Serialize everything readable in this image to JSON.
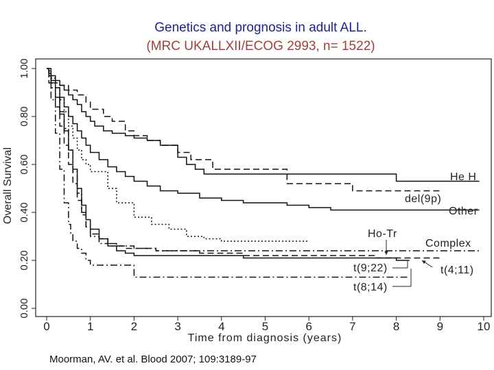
{
  "title": {
    "line1": "Genetics and prognosis in adult ALL.",
    "line2": "(MRC UKALLXII/ECOG 2993, n= 1522)"
  },
  "citation": "Moorman, AV. et al. Blood 2007; 109:3189-97",
  "chart_data": {
    "type": "line",
    "title": "Genetics and prognosis in adult ALL.",
    "subtitle": "(MRC UKALLXII/ECOG 2993, n= 1522)",
    "xlabel": "Time from diagnosis (years)",
    "ylabel": "Overall Survival",
    "xlim": [
      0,
      10
    ],
    "ylim": [
      0,
      1
    ],
    "xticks": [
      0,
      1,
      2,
      3,
      4,
      5,
      6,
      7,
      8,
      9,
      10
    ],
    "yticks": [
      "0.00",
      "0.20",
      "0.40",
      "0.60",
      "0.80",
      "1.00"
    ],
    "grid": false,
    "series": [
      {
        "name": "HeH",
        "style": "solid",
        "x": [
          0,
          0.05,
          0.1,
          0.2,
          0.3,
          0.4,
          0.5,
          0.6,
          0.7,
          0.8,
          0.9,
          1.0,
          1.1,
          1.3,
          1.5,
          1.8,
          2.0,
          2.3,
          2.6,
          3.0,
          3.2,
          3.4,
          3.6,
          4.0,
          4.5,
          5.0,
          5.5,
          6.0,
          6.5,
          7.0,
          7.5,
          8.0,
          8.5,
          9.0,
          9.5,
          9.9
        ],
        "y": [
          1.0,
          0.99,
          0.97,
          0.95,
          0.93,
          0.91,
          0.89,
          0.87,
          0.85,
          0.82,
          0.8,
          0.78,
          0.76,
          0.74,
          0.73,
          0.72,
          0.71,
          0.7,
          0.68,
          0.63,
          0.6,
          0.58,
          0.56,
          0.56,
          0.56,
          0.56,
          0.56,
          0.56,
          0.56,
          0.56,
          0.56,
          0.53,
          0.53,
          0.53,
          0.53,
          0.53
        ]
      },
      {
        "name": "del(9p)",
        "style": "dashed",
        "x": [
          0,
          0.05,
          0.1,
          0.2,
          0.3,
          0.5,
          0.7,
          0.9,
          1.0,
          1.3,
          1.5,
          1.8,
          2.0,
          2.3,
          2.6,
          3.0,
          3.3,
          3.6,
          3.8,
          4.0,
          4.3,
          4.5,
          4.8,
          5.0,
          5.5,
          5.8,
          6.0,
          6.5,
          7.0,
          7.5,
          8.0,
          8.5,
          9.0
        ],
        "y": [
          1.0,
          0.97,
          0.95,
          0.94,
          0.93,
          0.91,
          0.89,
          0.86,
          0.83,
          0.8,
          0.78,
          0.74,
          0.72,
          0.7,
          0.68,
          0.65,
          0.62,
          0.62,
          0.58,
          0.58,
          0.58,
          0.58,
          0.58,
          0.58,
          0.52,
          0.52,
          0.52,
          0.52,
          0.49,
          0.49,
          0.49,
          0.49,
          0.49
        ]
      },
      {
        "name": "Other",
        "style": "solid",
        "x": [
          0,
          0.05,
          0.1,
          0.2,
          0.3,
          0.4,
          0.5,
          0.6,
          0.7,
          0.8,
          0.9,
          1.0,
          1.2,
          1.4,
          1.6,
          1.8,
          2.0,
          2.3,
          2.6,
          3.0,
          3.5,
          4.0,
          4.5,
          5.0,
          5.5,
          6.0,
          6.5,
          7.0,
          7.5,
          8.0,
          8.5,
          9.0,
          9.5,
          9.9
        ],
        "y": [
          1.0,
          0.98,
          0.95,
          0.92,
          0.88,
          0.84,
          0.8,
          0.77,
          0.74,
          0.71,
          0.68,
          0.65,
          0.62,
          0.59,
          0.57,
          0.55,
          0.53,
          0.51,
          0.49,
          0.48,
          0.46,
          0.45,
          0.44,
          0.44,
          0.43,
          0.42,
          0.41,
          0.41,
          0.41,
          0.41,
          0.41,
          0.41,
          0.41,
          0.41
        ]
      },
      {
        "name": "Ho-Tr",
        "style": "dashdot",
        "x": [
          0,
          0.05,
          0.1,
          0.2,
          0.3,
          0.4,
          0.5,
          0.6,
          0.7,
          0.8,
          0.9,
          1.0,
          1.2,
          1.5,
          2.0,
          2.5,
          3.0,
          4.0,
          5.0,
          6.0,
          7.0,
          8.0,
          9.0,
          9.9
        ],
        "y": [
          1.0,
          0.97,
          0.94,
          0.88,
          0.82,
          0.75,
          0.66,
          0.57,
          0.48,
          0.4,
          0.34,
          0.3,
          0.27,
          0.26,
          0.25,
          0.24,
          0.24,
          0.24,
          0.24,
          0.24,
          0.24,
          0.24,
          0.24,
          0.24
        ]
      },
      {
        "name": "Complex",
        "style": "dotted",
        "x": [
          0,
          0.05,
          0.1,
          0.2,
          0.3,
          0.4,
          0.5,
          0.6,
          0.7,
          0.8,
          0.9,
          1.0,
          1.2,
          1.4,
          1.6,
          2.0,
          2.4,
          2.8,
          3.2,
          3.6,
          4.0,
          4.5,
          4.8,
          5.0,
          5.5,
          6.0
        ],
        "y": [
          1.0,
          0.98,
          0.96,
          0.92,
          0.87,
          0.82,
          0.76,
          0.71,
          0.66,
          0.62,
          0.6,
          0.57,
          0.57,
          0.5,
          0.44,
          0.38,
          0.35,
          0.33,
          0.3,
          0.29,
          0.28,
          0.28,
          0.28,
          0.28,
          0.28,
          0.28
        ]
      },
      {
        "name": "t(9;22)",
        "style": "solid",
        "x": [
          0,
          0.05,
          0.1,
          0.2,
          0.3,
          0.4,
          0.5,
          0.6,
          0.7,
          0.8,
          0.9,
          1.0,
          1.2,
          1.4,
          1.6,
          1.8,
          2.0,
          2.5,
          3.0,
          3.5,
          4.0,
          4.5,
          5.0,
          5.5,
          6.0,
          6.5,
          7.0,
          7.5,
          8.0,
          8.3
        ],
        "y": [
          1.0,
          0.97,
          0.94,
          0.88,
          0.81,
          0.74,
          0.66,
          0.58,
          0.5,
          0.43,
          0.37,
          0.33,
          0.29,
          0.26,
          0.24,
          0.23,
          0.22,
          0.22,
          0.22,
          0.22,
          0.22,
          0.21,
          0.21,
          0.21,
          0.21,
          0.21,
          0.21,
          0.21,
          0.2,
          0.2
        ]
      },
      {
        "name": "t(4;11)",
        "style": "dashed",
        "x": [
          0,
          0.1,
          0.2,
          0.3,
          0.4,
          0.5,
          0.6,
          0.7,
          0.8,
          0.9,
          1.0,
          1.2,
          1.4,
          1.6,
          1.8,
          2.0,
          2.5,
          3.0,
          3.5,
          4.0,
          4.5,
          5.0,
          5.5,
          6.0,
          6.5,
          7.0,
          7.5,
          8.0,
          8.5,
          9.0
        ],
        "y": [
          1.0,
          0.92,
          0.84,
          0.76,
          0.68,
          0.6,
          0.52,
          0.45,
          0.39,
          0.34,
          0.31,
          0.29,
          0.27,
          0.26,
          0.25,
          0.25,
          0.24,
          0.24,
          0.23,
          0.23,
          0.22,
          0.22,
          0.22,
          0.22,
          0.22,
          0.22,
          0.21,
          0.21,
          0.21,
          0.21
        ]
      },
      {
        "name": "t(8;14)",
        "style": "dashdot",
        "x": [
          0,
          0.05,
          0.1,
          0.2,
          0.3,
          0.4,
          0.5,
          0.55,
          0.6,
          0.7,
          0.8,
          0.9,
          1.0,
          1.5,
          1.9,
          2.0,
          2.5,
          3.0,
          4.0,
          5.0,
          6.0,
          7.0,
          7.5,
          8.0,
          8.3
        ],
        "y": [
          1.0,
          0.94,
          0.87,
          0.73,
          0.58,
          0.44,
          0.35,
          0.31,
          0.28,
          0.25,
          0.23,
          0.2,
          0.18,
          0.18,
          0.18,
          0.13,
          0.13,
          0.13,
          0.13,
          0.13,
          0.13,
          0.13,
          0.13,
          0.13,
          0.13
        ]
      }
    ],
    "annotations": [
      {
        "text": "He H",
        "series": "HeH"
      },
      {
        "text": "del(9p)",
        "series": "del(9p)"
      },
      {
        "text": "Other",
        "series": "Other"
      },
      {
        "text": "Ho-Tr",
        "series": "Ho-Tr"
      },
      {
        "text": "Complex",
        "series": "Complex"
      },
      {
        "text": "t(9;22)",
        "series": "t(9;22)"
      },
      {
        "text": "t(4;11)",
        "series": "t(4;11)"
      },
      {
        "text": "t(8;14)",
        "series": "t(8;14)"
      }
    ]
  }
}
